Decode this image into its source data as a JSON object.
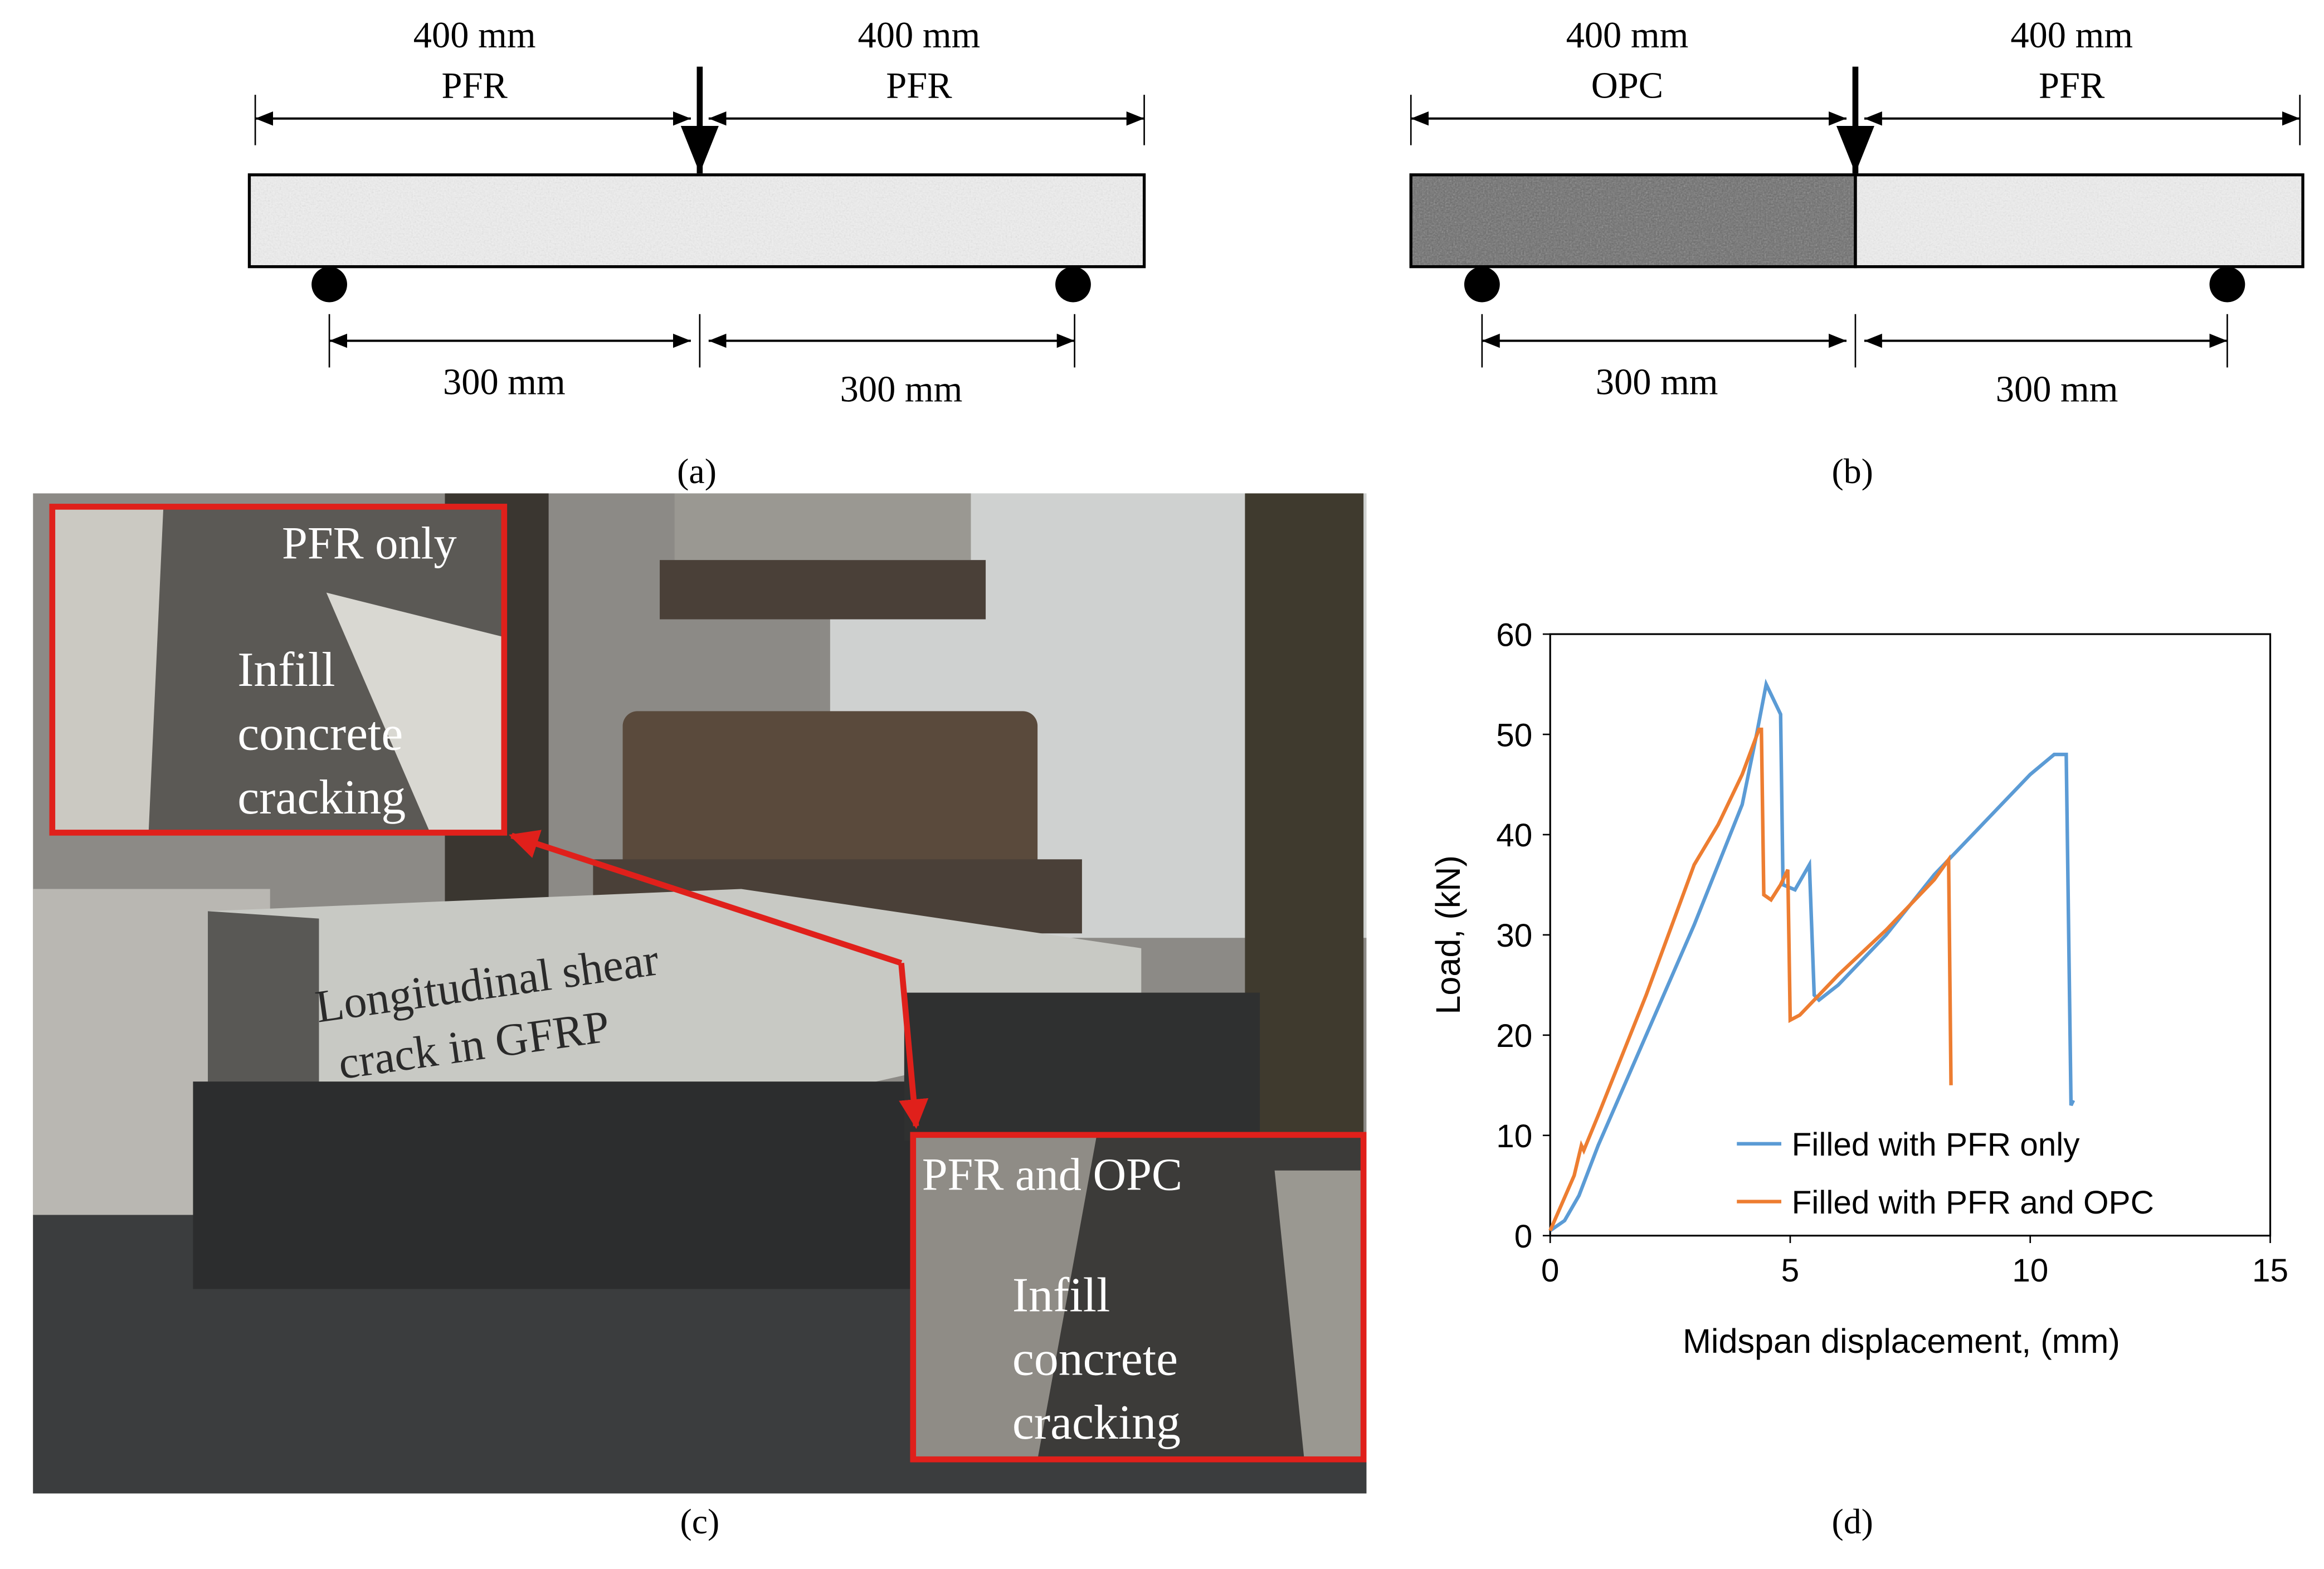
{
  "panel_a": {
    "left_length": "400 mm",
    "left_material": "PFR",
    "right_length": "400 mm",
    "right_material": "PFR",
    "left_span": "300 mm",
    "right_span": "300 mm",
    "label": "(a)"
  },
  "panel_b": {
    "left_length": "400 mm",
    "left_material": "OPC",
    "right_length": "400 mm",
    "right_material": "PFR",
    "left_span": "300 mm",
    "right_span": "300 mm",
    "label": "(b)"
  },
  "panel_c": {
    "inset_top_title": "PFR only",
    "inset_top_note": [
      "Infill",
      "concrete",
      "cracking"
    ],
    "beam_note": [
      "Longitudinal shear",
      "crack in GFRP"
    ],
    "inset_bottom_title": "PFR and OPC",
    "inset_bottom_note": [
      "Infill",
      "concrete",
      "cracking"
    ],
    "label": "(c)"
  },
  "chart_data": {
    "type": "line",
    "xlabel": "Midspan displacement, (mm)",
    "ylabel": "Load, (kN)",
    "xlim": [
      0,
      15
    ],
    "ylim": [
      0,
      60
    ],
    "xticks": [
      0,
      5,
      10,
      15
    ],
    "yticks": [
      0,
      10,
      20,
      30,
      40,
      50,
      60
    ],
    "legend": "lower right",
    "series": [
      {
        "name": "Filled with PFR only",
        "color": "#5b9bd5",
        "x": [
          0,
          0.3,
          0.6,
          1,
          2,
          3,
          4,
          4.3,
          4.5,
          4.6,
          4.75,
          4.8,
          4.85,
          5.1,
          5.4,
          5.5,
          5.6,
          6,
          7,
          8,
          9,
          10,
          10.5,
          10.75,
          10.85,
          10.9
        ],
        "values": [
          0.5,
          1.5,
          4,
          9,
          20,
          31,
          43,
          50,
          55,
          54,
          52.5,
          52,
          35,
          34.5,
          37,
          24,
          23.5,
          25,
          30,
          36,
          41,
          46,
          48,
          48,
          13,
          13.5
        ]
      },
      {
        "name": "Filled with PFR and OPC",
        "color": "#ed7d31",
        "x": [
          0,
          0.5,
          0.65,
          0.7,
          1,
          2,
          3,
          3.5,
          4,
          4.35,
          4.4,
          4.45,
          4.6,
          4.8,
          4.95,
          5,
          5.2,
          6,
          7,
          8,
          8.3,
          8.35
        ],
        "values": [
          0.5,
          6,
          9,
          8.5,
          12,
          24,
          37,
          41,
          46,
          50.5,
          50.5,
          34,
          33.5,
          35,
          36.5,
          21.5,
          22,
          26,
          30.5,
          35.5,
          37.5,
          15
        ]
      }
    ]
  },
  "panel_d": {
    "label": "(d)"
  }
}
